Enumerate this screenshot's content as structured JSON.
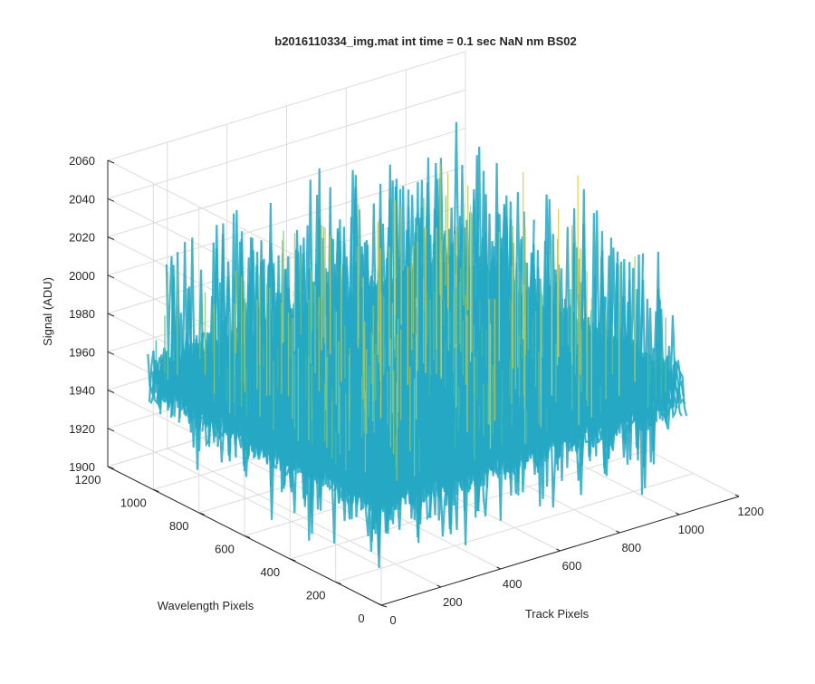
{
  "chart_data": {
    "type": "surface",
    "title": "b2016110334_img.mat int time = 0.1 sec  NaN nm BS02",
    "xlabel": "Track Pixels",
    "ylabel": "Wavelength Pixels",
    "zlabel": "Signal (ADU)",
    "xlim": [
      0,
      1200
    ],
    "ylim": [
      0,
      1200
    ],
    "zlim": [
      1900,
      2060
    ],
    "x_ticks": [
      "0",
      "200",
      "400",
      "600",
      "800",
      "1000",
      "1200"
    ],
    "y_ticks": [
      "0",
      "200",
      "400",
      "600",
      "800",
      "1000",
      "1200"
    ],
    "z_ticks": [
      "1900",
      "1920",
      "1940",
      "1960",
      "1980",
      "2000",
      "2020",
      "2040",
      "2060"
    ],
    "x_data_range": [
      0,
      1024
    ],
    "y_data_range": [
      0,
      1024
    ],
    "signal_summary": {
      "typical_min": 1920,
      "typical_level": 1960,
      "peak_max": 2052
    },
    "colormap": [
      "#0a72d8",
      "#1591cf",
      "#26a8c3",
      "#3bb6b0",
      "#5cbf99",
      "#8bc57a",
      "#bfc85a",
      "#e3cd3e"
    ],
    "grid": true,
    "view": "3d-perspective"
  }
}
